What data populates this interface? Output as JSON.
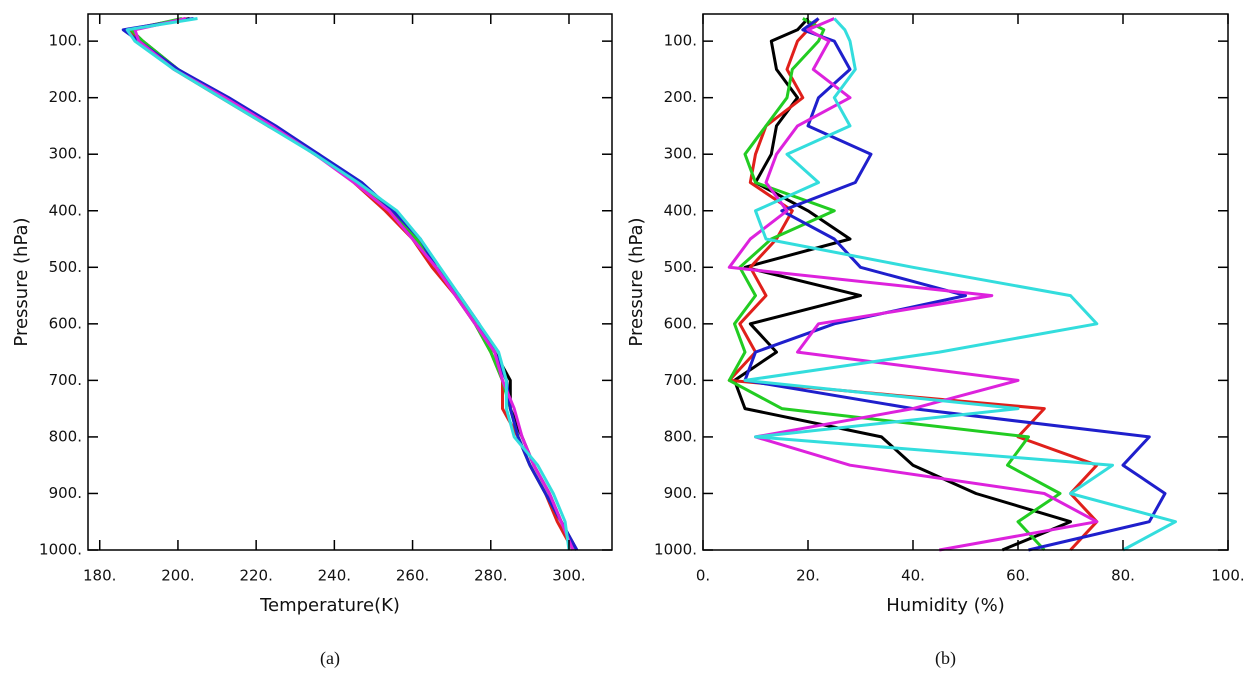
{
  "chart_data": [
    {
      "type": "line",
      "xlabel": "Temperature(K)",
      "ylabel": "Pressure (hPa)",
      "caption": "(a)",
      "y": [
        60,
        80,
        100,
        150,
        200,
        250,
        300,
        350,
        400,
        450,
        500,
        550,
        600,
        650,
        700,
        750,
        800,
        850,
        900,
        950,
        1000
      ],
      "xlim": [
        177,
        311
      ],
      "ylim": [
        52,
        1000
      ],
      "y_inverted": true,
      "xticks": [
        {
          "value": 180,
          "label": "180."
        },
        {
          "value": 200,
          "label": "200."
        },
        {
          "value": 220,
          "label": "220."
        },
        {
          "value": 240,
          "label": "240."
        },
        {
          "value": 260,
          "label": "260."
        },
        {
          "value": 280,
          "label": "280."
        },
        {
          "value": 300,
          "label": "300."
        }
      ],
      "yticks": [
        {
          "value": 100,
          "label": "100."
        },
        {
          "value": 200,
          "label": "200."
        },
        {
          "value": 300,
          "label": "300."
        },
        {
          "value": 400,
          "label": "400."
        },
        {
          "value": 500,
          "label": "500."
        },
        {
          "value": 600,
          "label": "600."
        },
        {
          "value": 700,
          "label": "700."
        },
        {
          "value": 800,
          "label": "800."
        },
        {
          "value": 900,
          "label": "900."
        },
        {
          "value": 1000,
          "label": "1000."
        }
      ],
      "series": [
        {
          "color": "#000000",
          "values": [
            203,
            188,
            191,
            200,
            212,
            224,
            235,
            246,
            254,
            261,
            266,
            271,
            276,
            281,
            285,
            285,
            288,
            291,
            295,
            298,
            302
          ]
        },
        {
          "color": "#e0201b",
          "values": [
            202,
            187,
            190,
            199,
            211,
            223,
            236,
            245,
            253,
            260,
            265,
            271,
            276,
            280,
            283,
            283,
            287,
            290,
            294,
            297,
            301
          ]
        },
        {
          "color": "#22cc22",
          "values": [
            201,
            188,
            191,
            200,
            212,
            224,
            235,
            246,
            255,
            261,
            266,
            272,
            276,
            280,
            283,
            285,
            287,
            290,
            294,
            298,
            301
          ]
        },
        {
          "color": "#1f1fcc",
          "values": [
            204,
            186,
            190,
            200,
            213,
            225,
            236,
            247,
            255,
            262,
            266,
            272,
            277,
            281,
            284,
            285,
            287,
            290,
            294,
            298,
            302
          ]
        },
        {
          "color": "#dd22dd",
          "values": [
            202,
            189,
            190,
            199,
            212,
            224,
            235,
            245,
            254,
            260,
            266,
            271,
            276,
            281,
            283,
            286,
            288,
            291,
            295,
            298,
            301
          ]
        },
        {
          "color": "#33dddd",
          "values": [
            205,
            187,
            189,
            199,
            211,
            223,
            235,
            246,
            256,
            262,
            267,
            272,
            277,
            282,
            284,
            284,
            286,
            292,
            296,
            299,
            300
          ]
        }
      ]
    },
    {
      "type": "line",
      "xlabel": "Humidity (%)",
      "ylabel": "Pressure (hPa)",
      "caption": "(b)",
      "y": [
        60,
        80,
        100,
        150,
        200,
        250,
        300,
        350,
        400,
        450,
        500,
        550,
        600,
        650,
        700,
        750,
        800,
        850,
        900,
        950,
        1000
      ],
      "xlim": [
        0,
        100
      ],
      "ylim": [
        52,
        1000
      ],
      "y_inverted": true,
      "xticks": [
        {
          "value": 0,
          "label": "0."
        },
        {
          "value": 20,
          "label": "20."
        },
        {
          "value": 40,
          "label": "40."
        },
        {
          "value": 60,
          "label": "60."
        },
        {
          "value": 80,
          "label": "80."
        },
        {
          "value": 100,
          "label": "100."
        }
      ],
      "yticks": [
        {
          "value": 100,
          "label": "100."
        },
        {
          "value": 200,
          "label": "200."
        },
        {
          "value": 300,
          "label": "300."
        },
        {
          "value": 400,
          "label": "400."
        },
        {
          "value": 500,
          "label": "500."
        },
        {
          "value": 600,
          "label": "600."
        },
        {
          "value": 700,
          "label": "700."
        },
        {
          "value": 800,
          "label": "800."
        },
        {
          "value": 900,
          "label": "900."
        },
        {
          "value": 1000,
          "label": "1000."
        }
      ],
      "series": [
        {
          "color": "#000000",
          "values": [
            20,
            18,
            13,
            14,
            18,
            14,
            13,
            10,
            20,
            28,
            8,
            30,
            9,
            14,
            6,
            8,
            34,
            40,
            52,
            70,
            57
          ]
        },
        {
          "color": "#e0201b",
          "values": [
            22,
            20,
            18,
            16,
            19,
            12,
            10,
            9,
            17,
            14,
            9,
            12,
            7,
            10,
            5,
            65,
            60,
            75,
            70,
            75,
            70
          ]
        },
        {
          "color": "#22cc22",
          "values": [
            19,
            23,
            22,
            17,
            16,
            12,
            8,
            10,
            25,
            13,
            7,
            10,
            6,
            8,
            5,
            15,
            62,
            58,
            68,
            60,
            65
          ]
        },
        {
          "color": "#1f1fcc",
          "values": [
            22,
            19,
            25,
            28,
            22,
            20,
            32,
            29,
            15,
            25,
            30,
            50,
            25,
            10,
            8,
            40,
            85,
            80,
            88,
            85,
            62
          ]
        },
        {
          "color": "#dd22dd",
          "values": [
            25,
            20,
            24,
            21,
            28,
            18,
            14,
            12,
            16,
            9,
            5,
            55,
            22,
            18,
            60,
            40,
            10,
            28,
            65,
            75,
            45
          ]
        },
        {
          "color": "#33dddd",
          "values": [
            25,
            27,
            28,
            29,
            25,
            28,
            16,
            22,
            10,
            12,
            40,
            70,
            75,
            45,
            8,
            60,
            10,
            78,
            70,
            90,
            80
          ]
        }
      ]
    }
  ]
}
